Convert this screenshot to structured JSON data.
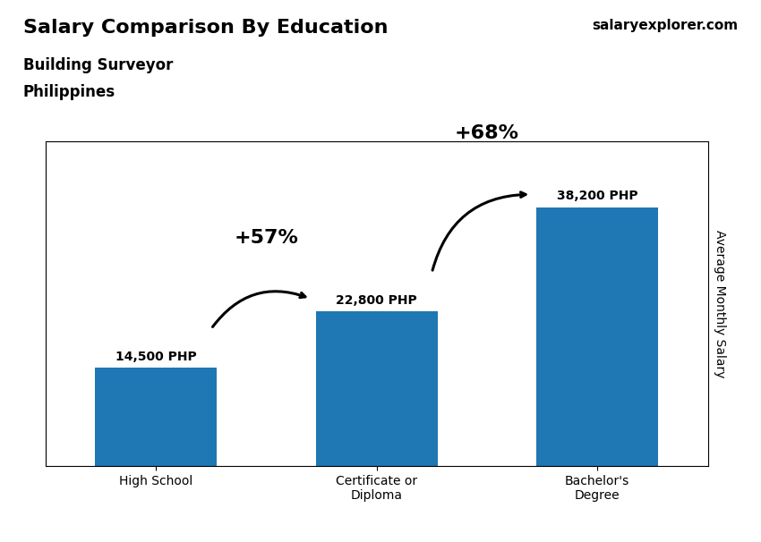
{
  "chart_data": {
    "type": "bar",
    "title": "Salary Comparison By Education",
    "subtitle": [
      "Building Surveyor",
      "Philippines"
    ],
    "y_label": "Average Monthly Salary",
    "categories": [
      "High School",
      "Certificate or\nDiploma",
      "Bachelor's\nDegree"
    ],
    "values": [
      14500,
      22800,
      38200
    ],
    "value_labels": [
      "14,500 PHP",
      "22,800 PHP",
      "38,200 PHP"
    ],
    "data_labels": true,
    "ylim": [
      0,
      48000
    ],
    "tick_labels": "x",
    "annotations": [
      {
        "text": "+57%",
        "from": "High School",
        "to": "Certificate or\nDiploma"
      },
      {
        "text": "+68%",
        "from": "Certificate or\nDiploma",
        "to": "Bachelor's\nDegree"
      },
      {
        "text": "salaryexplorer.com"
      }
    ]
  }
}
